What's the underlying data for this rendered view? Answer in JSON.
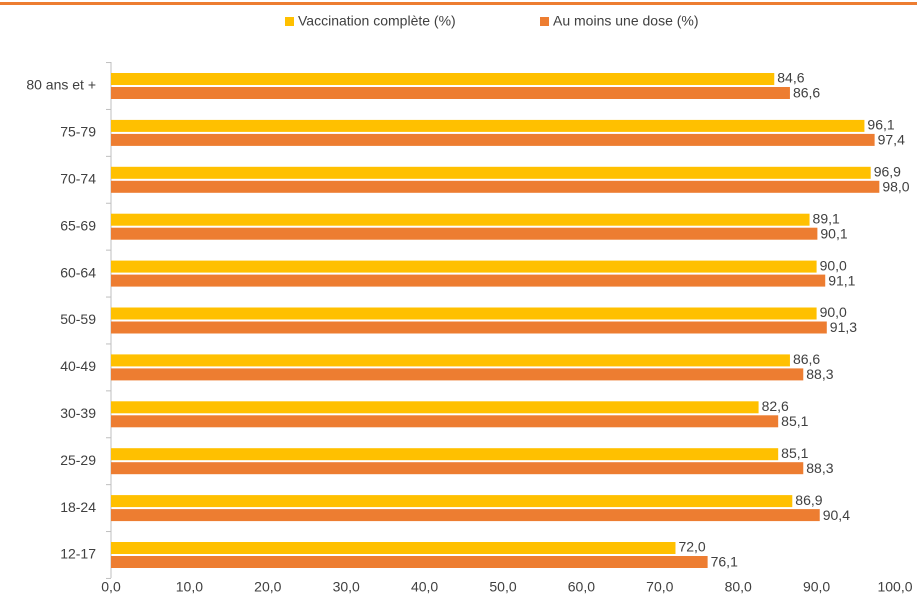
{
  "chart_data": {
    "type": "bar",
    "orientation": "horizontal",
    "categories": [
      "80 ans et +",
      "75-79",
      "70-74",
      "65-69",
      "60-64",
      "50-59",
      "40-49",
      "30-39",
      "25-29",
      "18-24",
      "12-17"
    ],
    "series": [
      {
        "name": "Vaccination complète (%)",
        "color": "#ffc000",
        "values": [
          84.6,
          96.1,
          96.9,
          89.1,
          90.0,
          90.0,
          86.6,
          82.6,
          85.1,
          86.9,
          72.0
        ],
        "value_labels": [
          "84,6",
          "96,1",
          "96,9",
          "89,1",
          "90,0",
          "90,0",
          "86,6",
          "82,6",
          "85,1",
          "86,9",
          "72,0"
        ]
      },
      {
        "name": "Au moins une dose (%)",
        "color": "#ed7d31",
        "values": [
          86.6,
          97.4,
          98.0,
          90.1,
          91.1,
          91.3,
          88.3,
          85.1,
          88.3,
          90.4,
          76.1
        ],
        "value_labels": [
          "86,6",
          "97,4",
          "98,0",
          "90,1",
          "91,1",
          "91,3",
          "88,3",
          "85,1",
          "88,3",
          "90,4",
          "76,1"
        ]
      }
    ],
    "xlim": [
      0,
      100
    ],
    "xticks": [
      {
        "value": 0,
        "label": "0,0"
      },
      {
        "value": 10,
        "label": "10,0"
      },
      {
        "value": 20,
        "label": "20,0"
      },
      {
        "value": 30,
        "label": "30,0"
      },
      {
        "value": 40,
        "label": "40,0"
      },
      {
        "value": 50,
        "label": "50,0"
      },
      {
        "value": 60,
        "label": "60,0"
      },
      {
        "value": 70,
        "label": "70,0"
      },
      {
        "value": 80,
        "label": "80,0"
      },
      {
        "value": 90,
        "label": "90,0"
      },
      {
        "value": 100,
        "label": "100,0"
      }
    ],
    "grid": false,
    "legend": "top"
  }
}
